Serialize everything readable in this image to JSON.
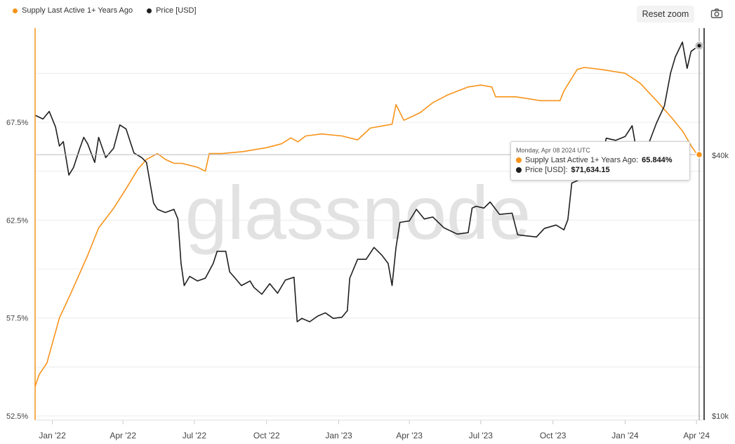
{
  "legend": [
    {
      "label": "Supply Last Active 1+ Years Ago",
      "color": "#f7931a"
    },
    {
      "label": "Price [USD]",
      "color": "#1f1f1f"
    }
  ],
  "toolbar": {
    "reset_zoom": "Reset zoom",
    "camera_icon": "camera-icon"
  },
  "watermark": "glassnode",
  "tooltip": {
    "date": "Monday, Apr 08 2024 UTC",
    "supply_label": "Supply Last Active 1+ Years Ago:",
    "supply_value": "65.844%",
    "price_label": "Price [USD]:",
    "price_value": "$71,634.15"
  },
  "chart_data": {
    "type": "line",
    "title": "",
    "x_ticks": [
      "Jan '22",
      "Apr '22",
      "Jul '22",
      "Oct '22",
      "Jan '23",
      "Apr '23",
      "Jul '23",
      "Oct '23",
      "Jan '24",
      "Apr '24"
    ],
    "x_range": [
      "2021-12-10",
      "2024-04-08"
    ],
    "left_axis": {
      "ticks": [
        "67.5%",
        "62.5%",
        "57.5%",
        "52.5%"
      ],
      "range": [
        52.5,
        70.0
      ]
    },
    "right_axis": {
      "ticks": [
        "$40k",
        "$10k"
      ],
      "scale": "log"
    },
    "grid": true,
    "legend_position": "top-left",
    "series": [
      {
        "name": "Supply Last Active 1+ Years Ago",
        "color": "#f7931a",
        "axis": "left",
        "unit": "%",
        "x": [
          "2021-12-10",
          "2021-12-15",
          "2021-12-25",
          "2022-01-10",
          "2022-01-25",
          "2022-02-15",
          "2022-03-01",
          "2022-03-20",
          "2022-04-05",
          "2022-04-20",
          "2022-05-01",
          "2022-05-15",
          "2022-05-25",
          "2022-06-05",
          "2022-06-15",
          "2022-06-25",
          "2022-07-05",
          "2022-07-15",
          "2022-07-20",
          "2022-08-05",
          "2022-09-01",
          "2022-10-01",
          "2022-10-20",
          "2022-11-01",
          "2022-11-10",
          "2022-11-20",
          "2022-12-10",
          "2023-01-05",
          "2023-01-25",
          "2023-02-05",
          "2023-02-10",
          "2023-03-10",
          "2023-03-15",
          "2023-03-25",
          "2023-04-05",
          "2023-04-15",
          "2023-05-01",
          "2023-05-20",
          "2023-06-15",
          "2023-07-01",
          "2023-07-15",
          "2023-07-20",
          "2023-08-15",
          "2023-09-15",
          "2023-10-10",
          "2023-10-15",
          "2023-11-01",
          "2023-11-10",
          "2023-12-01",
          "2024-01-01",
          "2024-01-20",
          "2024-02-10",
          "2024-03-01",
          "2024-03-15",
          "2024-03-25",
          "2024-04-01",
          "2024-04-08"
        ],
        "values": [
          54.0,
          54.6,
          55.2,
          57.5,
          58.8,
          60.7,
          62.1,
          63.1,
          64.1,
          65.1,
          65.6,
          65.9,
          65.6,
          65.4,
          65.4,
          65.3,
          65.2,
          65.0,
          65.9,
          65.9,
          66.0,
          66.2,
          66.4,
          66.7,
          66.5,
          66.8,
          66.9,
          66.8,
          66.6,
          67.0,
          67.2,
          67.4,
          68.4,
          67.6,
          67.8,
          68.0,
          68.5,
          68.9,
          69.3,
          69.4,
          69.3,
          68.8,
          68.8,
          68.6,
          68.6,
          69.1,
          70.2,
          70.3,
          70.2,
          70.0,
          69.5,
          68.6,
          67.7,
          67.0,
          66.3,
          65.9,
          65.844
        ]
      },
      {
        "name": "Price [USD]",
        "color": "#1f1f1f",
        "axis": "right",
        "unit": "USD",
        "x": [
          "2021-12-10",
          "2021-12-20",
          "2021-12-28",
          "2022-01-05",
          "2022-01-10",
          "2022-01-15",
          "2022-01-22",
          "2022-01-28",
          "2022-02-05",
          "2022-02-10",
          "2022-02-15",
          "2022-02-24",
          "2022-03-01",
          "2022-03-10",
          "2022-03-20",
          "2022-03-28",
          "2022-04-05",
          "2022-04-15",
          "2022-04-25",
          "2022-05-01",
          "2022-05-10",
          "2022-05-15",
          "2022-05-25",
          "2022-06-05",
          "2022-06-10",
          "2022-06-14",
          "2022-06-18",
          "2022-06-25",
          "2022-07-05",
          "2022-07-15",
          "2022-07-25",
          "2022-07-30",
          "2022-08-10",
          "2022-08-15",
          "2022-08-20",
          "2022-08-30",
          "2022-09-10",
          "2022-09-15",
          "2022-09-25",
          "2022-10-05",
          "2022-10-15",
          "2022-10-25",
          "2022-11-05",
          "2022-11-09",
          "2022-11-15",
          "2022-11-25",
          "2022-12-05",
          "2022-12-15",
          "2022-12-25",
          "2023-01-05",
          "2023-01-12",
          "2023-01-15",
          "2023-01-25",
          "2023-02-05",
          "2023-02-15",
          "2023-02-25",
          "2023-03-05",
          "2023-03-10",
          "2023-03-15",
          "2023-03-20",
          "2023-04-01",
          "2023-04-10",
          "2023-04-20",
          "2023-05-01",
          "2023-05-15",
          "2023-06-01",
          "2023-06-15",
          "2023-06-20",
          "2023-06-25",
          "2023-07-05",
          "2023-07-13",
          "2023-07-25",
          "2023-08-10",
          "2023-08-17",
          "2023-08-25",
          "2023-09-10",
          "2023-09-20",
          "2023-10-05",
          "2023-10-15",
          "2023-10-20",
          "2023-10-25",
          "2023-11-05",
          "2023-11-15",
          "2023-12-01",
          "2023-12-08",
          "2023-12-20",
          "2024-01-01",
          "2024-01-10",
          "2024-01-15",
          "2024-01-23",
          "2024-02-01",
          "2024-02-10",
          "2024-02-20",
          "2024-02-28",
          "2024-03-05",
          "2024-03-14",
          "2024-03-20",
          "2024-03-25",
          "2024-04-01",
          "2024-04-08"
        ],
        "values": [
          49500,
          48500,
          50500,
          46500,
          42000,
          43000,
          36000,
          37500,
          41500,
          44000,
          42500,
          38500,
          44000,
          39500,
          41500,
          47000,
          46000,
          40500,
          39500,
          38500,
          31000,
          30000,
          29500,
          30000,
          28500,
          22500,
          20000,
          21000,
          20500,
          20800,
          22500,
          24000,
          24000,
          21500,
          21000,
          20000,
          20500,
          19800,
          19100,
          20200,
          19200,
          20600,
          20900,
          16500,
          16800,
          16500,
          17000,
          17300,
          16800,
          16900,
          17500,
          20800,
          23000,
          23000,
          24500,
          23500,
          22500,
          20000,
          24500,
          28000,
          28200,
          30000,
          28500,
          28800,
          27200,
          26300,
          26500,
          30200,
          30500,
          30200,
          31200,
          29200,
          29400,
          26200,
          26100,
          25900,
          27100,
          27600,
          26900,
          28400,
          34500,
          35200,
          37000,
          38500,
          43800,
          43300,
          44200,
          46800,
          41500,
          39700,
          43000,
          47500,
          52000,
          62000,
          67500,
          73000,
          63500,
          69500,
          71000,
          71634.15
        ]
      }
    ]
  }
}
